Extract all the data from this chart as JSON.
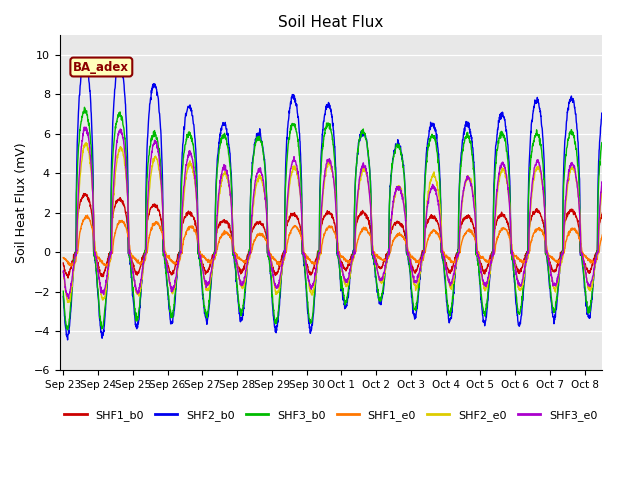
{
  "title": "Soil Heat Flux",
  "ylabel": "Soil Heat Flux (mV)",
  "ylim": [
    -6,
    11
  ],
  "yticks": [
    -6,
    -4,
    -2,
    0,
    2,
    4,
    6,
    8,
    10
  ],
  "background_color": "#e8e8e8",
  "series": [
    {
      "label": "SHF1_b0",
      "color": "#cc0000"
    },
    {
      "label": "SHF2_b0",
      "color": "#0000ee"
    },
    {
      "label": "SHF3_b0",
      "color": "#00bb00"
    },
    {
      "label": "SHF1_e0",
      "color": "#ff7700"
    },
    {
      "label": "SHF2_e0",
      "color": "#ddcc00"
    },
    {
      "label": "SHF3_e0",
      "color": "#aa00cc"
    }
  ],
  "xtick_labels": [
    "Sep 23",
    "Sep 24",
    "Sep 25",
    "Sep 26",
    "Sep 27",
    "Sep 28",
    "Sep 29",
    "Sep 30",
    "Oct 1",
    "Oct 2",
    "Oct 3",
    "Oct 4",
    "Oct 5",
    "Oct 6",
    "Oct 7",
    "Oct 8"
  ],
  "n_days": 16,
  "n_per_day": 144,
  "annotation_text": "BA_adex",
  "figsize": [
    6.4,
    4.8
  ],
  "dpi": 100
}
